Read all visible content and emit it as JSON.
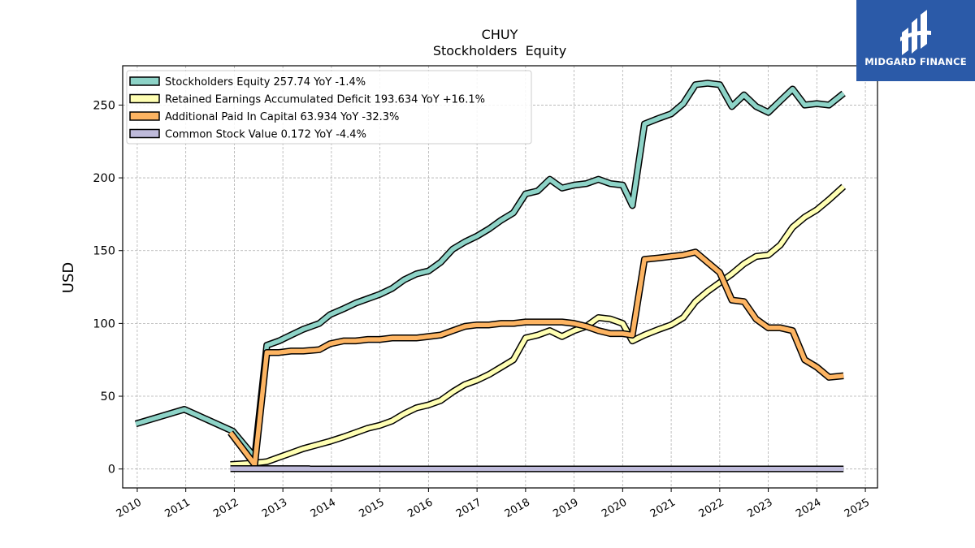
{
  "chart_data": {
    "type": "line",
    "title": "CHUY",
    "subtitle": "Stockholders  Equity",
    "ylabel": "USD",
    "xlabel": "",
    "ylim": [
      -13,
      277
    ],
    "xlim": [
      2009.7,
      2025.25
    ],
    "yticks": [
      0,
      50,
      100,
      150,
      200,
      250
    ],
    "xticks": [
      2010,
      2011,
      2012,
      2013,
      2014,
      2015,
      2016,
      2017,
      2018,
      2019,
      2020,
      2021,
      2022,
      2023,
      2024,
      2025
    ],
    "grid": true,
    "legend_position": "top-left",
    "series": [
      {
        "name": "Stockholders Equity  257.74 YoY -1.4%",
        "color": "#8dd3c7",
        "x": [
          2009.97,
          2010.97,
          2011.97,
          2012.42,
          2012.67,
          2012.92,
          2013.17,
          2013.42,
          2013.75,
          2013.97,
          2014.25,
          2014.5,
          2014.75,
          2015.0,
          2015.25,
          2015.5,
          2015.75,
          2016.0,
          2016.25,
          2016.5,
          2016.75,
          2017.0,
          2017.25,
          2017.5,
          2017.75,
          2018.0,
          2018.25,
          2018.5,
          2018.75,
          2019.0,
          2019.25,
          2019.5,
          2019.75,
          2020.0,
          2020.2,
          2020.45,
          2020.75,
          2021.0,
          2021.25,
          2021.5,
          2021.75,
          2022.0,
          2022.25,
          2022.5,
          2022.75,
          2023.0,
          2023.25,
          2023.5,
          2023.75,
          2024.0,
          2024.25,
          2024.55
        ],
        "y": [
          31,
          41,
          26,
          8,
          85,
          88,
          92,
          96,
          100,
          106,
          110,
          114,
          117,
          120,
          124,
          130,
          134,
          136,
          142,
          151,
          156,
          160,
          165,
          171,
          176,
          189,
          191,
          199,
          193,
          195,
          196,
          199,
          196,
          195,
          181,
          237,
          241,
          244,
          251,
          264,
          265,
          264,
          249,
          257,
          249,
          245,
          253,
          261,
          250,
          251,
          250,
          258
        ]
      },
      {
        "name": "Retained Earnings Accumulated Deficit  193.634 YoY +16.1%",
        "color": "#ffffb3",
        "x": [
          2011.92,
          2012.4,
          2012.67,
          2012.92,
          2013.17,
          2013.42,
          2013.75,
          2013.97,
          2014.25,
          2014.5,
          2014.75,
          2015.0,
          2015.25,
          2015.5,
          2015.75,
          2016.0,
          2016.25,
          2016.5,
          2016.75,
          2017.0,
          2017.25,
          2017.5,
          2017.75,
          2018.0,
          2018.25,
          2018.5,
          2018.75,
          2019.0,
          2019.25,
          2019.5,
          2019.75,
          2020.0,
          2020.2,
          2020.45,
          2020.75,
          2021.0,
          2021.25,
          2021.5,
          2021.75,
          2022.0,
          2022.25,
          2022.5,
          2022.75,
          2023.0,
          2023.25,
          2023.5,
          2023.75,
          2024.0,
          2024.25,
          2024.55
        ],
        "y": [
          3,
          4,
          5,
          8,
          11,
          14,
          17,
          19,
          22,
          25,
          28,
          30,
          33,
          38,
          42,
          44,
          47,
          53,
          58,
          61,
          65,
          70,
          75,
          90,
          92,
          95,
          91,
          95,
          98,
          104,
          103,
          100,
          88,
          92,
          96,
          99,
          104,
          115,
          122,
          128,
          134,
          141,
          146,
          147,
          154,
          166,
          173,
          178,
          185,
          194
        ]
      },
      {
        "name": "Additional Paid In Capital  63.934 YoY -32.3%",
        "color": "#fdb462",
        "x": [
          2011.92,
          2012.42,
          2012.67,
          2012.92,
          2013.17,
          2013.42,
          2013.75,
          2013.97,
          2014.25,
          2014.5,
          2014.75,
          2015.0,
          2015.25,
          2015.5,
          2015.75,
          2016.0,
          2016.25,
          2016.5,
          2016.75,
          2017.0,
          2017.25,
          2017.5,
          2017.75,
          2018.0,
          2018.25,
          2018.5,
          2018.75,
          2019.0,
          2019.25,
          2019.5,
          2019.75,
          2020.0,
          2020.2,
          2020.45,
          2020.75,
          2021.0,
          2021.25,
          2021.5,
          2021.75,
          2022.0,
          2022.25,
          2022.5,
          2022.75,
          2023.0,
          2023.25,
          2023.5,
          2023.75,
          2024.0,
          2024.25,
          2024.55
        ],
        "y": [
          25,
          3,
          80,
          80,
          81,
          81,
          82,
          86,
          88,
          88,
          89,
          89,
          90,
          90,
          90,
          91,
          92,
          95,
          98,
          99,
          99,
          100,
          100,
          101,
          101,
          101,
          101,
          100,
          98,
          95,
          93,
          93,
          92,
          144,
          145,
          146,
          147,
          149,
          142,
          135,
          116,
          115,
          103,
          97,
          97,
          95,
          75,
          70,
          63,
          64
        ]
      },
      {
        "name": "Common Stock Value  0.172 YoY -4.4%",
        "color": "#bebada",
        "x": [
          2011.92,
          2024.55
        ],
        "y": [
          0.2,
          0.17
        ]
      }
    ]
  },
  "brand": {
    "name": "MIDGARD FINANCE",
    "icon": "midgard-logo-icon",
    "background": "#2b5aa8"
  }
}
